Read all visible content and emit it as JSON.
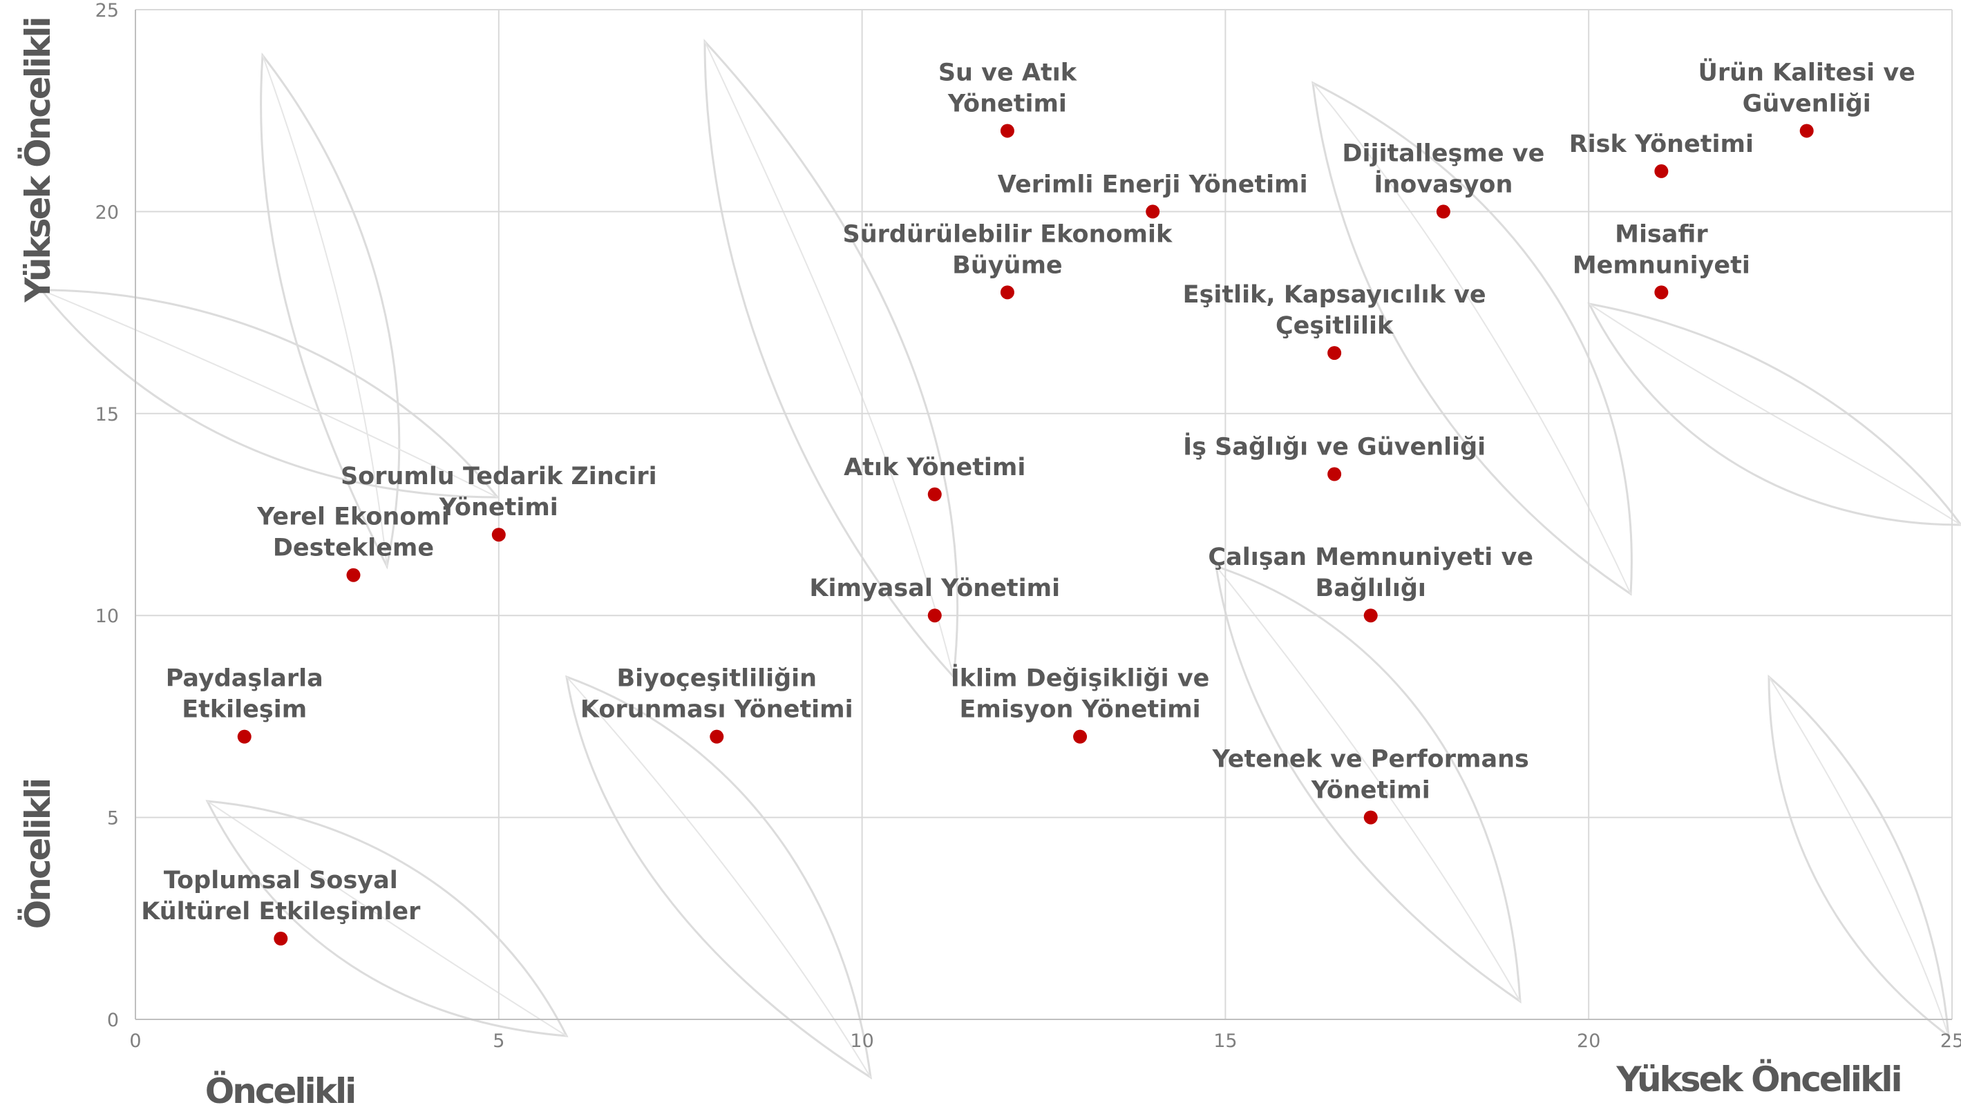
{
  "chart_data": {
    "type": "scatter",
    "xlim": [
      0,
      25
    ],
    "ylim": [
      0,
      25
    ],
    "x_ticks": [
      0,
      5,
      10,
      15,
      20,
      25
    ],
    "y_ticks": [
      0,
      5,
      10,
      15,
      20,
      25
    ],
    "grid": true,
    "marker_color": "#c00000",
    "x_axis_titles": {
      "low": "Öncelikli",
      "high": "Yüksek Öncelikli"
    },
    "y_axis_titles": {
      "low": "Öncelikli",
      "high": "Yüksek Öncelikli"
    },
    "points": [
      {
        "x": 12,
        "y": 22,
        "label": [
          "Su ve Atık",
          "Yönetimi"
        ]
      },
      {
        "x": 14,
        "y": 20,
        "label": [
          "Verimli Enerji Yönetimi"
        ]
      },
      {
        "x": 18,
        "y": 20,
        "label": [
          "Dijitalleşme ve",
          "İnovasyon"
        ]
      },
      {
        "x": 21,
        "y": 21,
        "label": [
          "Risk Yönetimi"
        ]
      },
      {
        "x": 23,
        "y": 22,
        "label": [
          "Ürün Kalitesi ve",
          "Güvenliği"
        ]
      },
      {
        "x": 12,
        "y": 18,
        "label": [
          "Sürdürülebilir Ekonomik",
          "Büyüme"
        ]
      },
      {
        "x": 16.5,
        "y": 16.5,
        "label": [
          "Eşitlik, Kapsayıcılık ve",
          "Çeşitlilik"
        ]
      },
      {
        "x": 21,
        "y": 18,
        "label": [
          "Misafir",
          "Memnuniyeti"
        ]
      },
      {
        "x": 16.5,
        "y": 13.5,
        "label": [
          "İş Sağlığı ve Güvenliği"
        ]
      },
      {
        "x": 11,
        "y": 13,
        "label": [
          "Atık Yönetimi"
        ]
      },
      {
        "x": 5,
        "y": 12,
        "label": [
          "Sorumlu Tedarik Zinciri",
          "Yönetimi"
        ]
      },
      {
        "x": 3,
        "y": 11,
        "label": [
          "Yerel Ekonomi",
          "Destekleme"
        ]
      },
      {
        "x": 11,
        "y": 10,
        "label": [
          "Kimyasal Yönetimi"
        ]
      },
      {
        "x": 17,
        "y": 10,
        "label": [
          "Çalışan Memnuniyeti ve",
          "Bağlılığı"
        ]
      },
      {
        "x": 1.5,
        "y": 7,
        "label": [
          "Paydaşlarla",
          "Etkileşim"
        ]
      },
      {
        "x": 8,
        "y": 7,
        "label": [
          "Biyoçeşitliliğin",
          "Korunması Yönetimi"
        ]
      },
      {
        "x": 13,
        "y": 7,
        "label": [
          "İklim Değişikliği ve",
          "Emisyon Yönetimi"
        ]
      },
      {
        "x": 17,
        "y": 5,
        "label": [
          "Yetenek ve Performans",
          "Yönetimi"
        ]
      },
      {
        "x": 2,
        "y": 2,
        "label": [
          "Toplumsal Sosyal",
          "Kültürel Etkileşimler"
        ]
      }
    ]
  }
}
